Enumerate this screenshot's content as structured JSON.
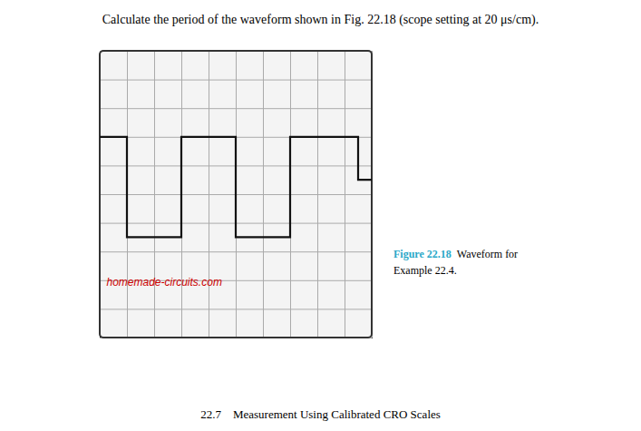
{
  "chart_data": {
    "type": "line",
    "title": "Calculate the period of the waveform shown in Fig. 22.18 (scope setting at 20 μs/cm).",
    "x": [
      0.0,
      1.0,
      1.0,
      3.0,
      3.0,
      5.0,
      5.0,
      7.0,
      7.0,
      9.5,
      9.5,
      10.0
    ],
    "values": [
      7.0,
      7.0,
      3.5,
      3.5,
      7.0,
      7.0,
      3.5,
      3.5,
      7.0,
      7.0,
      5.5,
      5.5
    ],
    "color": "#111111",
    "xlim": [
      0,
      10
    ],
    "ylim": [
      0,
      10
    ],
    "xticks": [
      0,
      1,
      2,
      3,
      4,
      5,
      6,
      7,
      8,
      9,
      10
    ],
    "yticks": [
      0,
      1,
      2,
      3,
      4,
      5,
      6,
      7,
      8,
      9,
      10
    ],
    "grid": true,
    "tick_labels": false,
    "annotations": [
      {
        "text": "homemade-circuits.com",
        "x": 0.25,
        "y": 1.8,
        "color": "#cc0000"
      }
    ],
    "caption": [
      [
        {
          "text": "Figure 22.18",
          "color": "#29a8c8"
        },
        {
          "text": "Waveform for"
        }
      ],
      [
        {
          "text": "Example 22.4."
        }
      ]
    ],
    "footer": "22.7    Measurement Using Calibrated CRO Scales"
  }
}
